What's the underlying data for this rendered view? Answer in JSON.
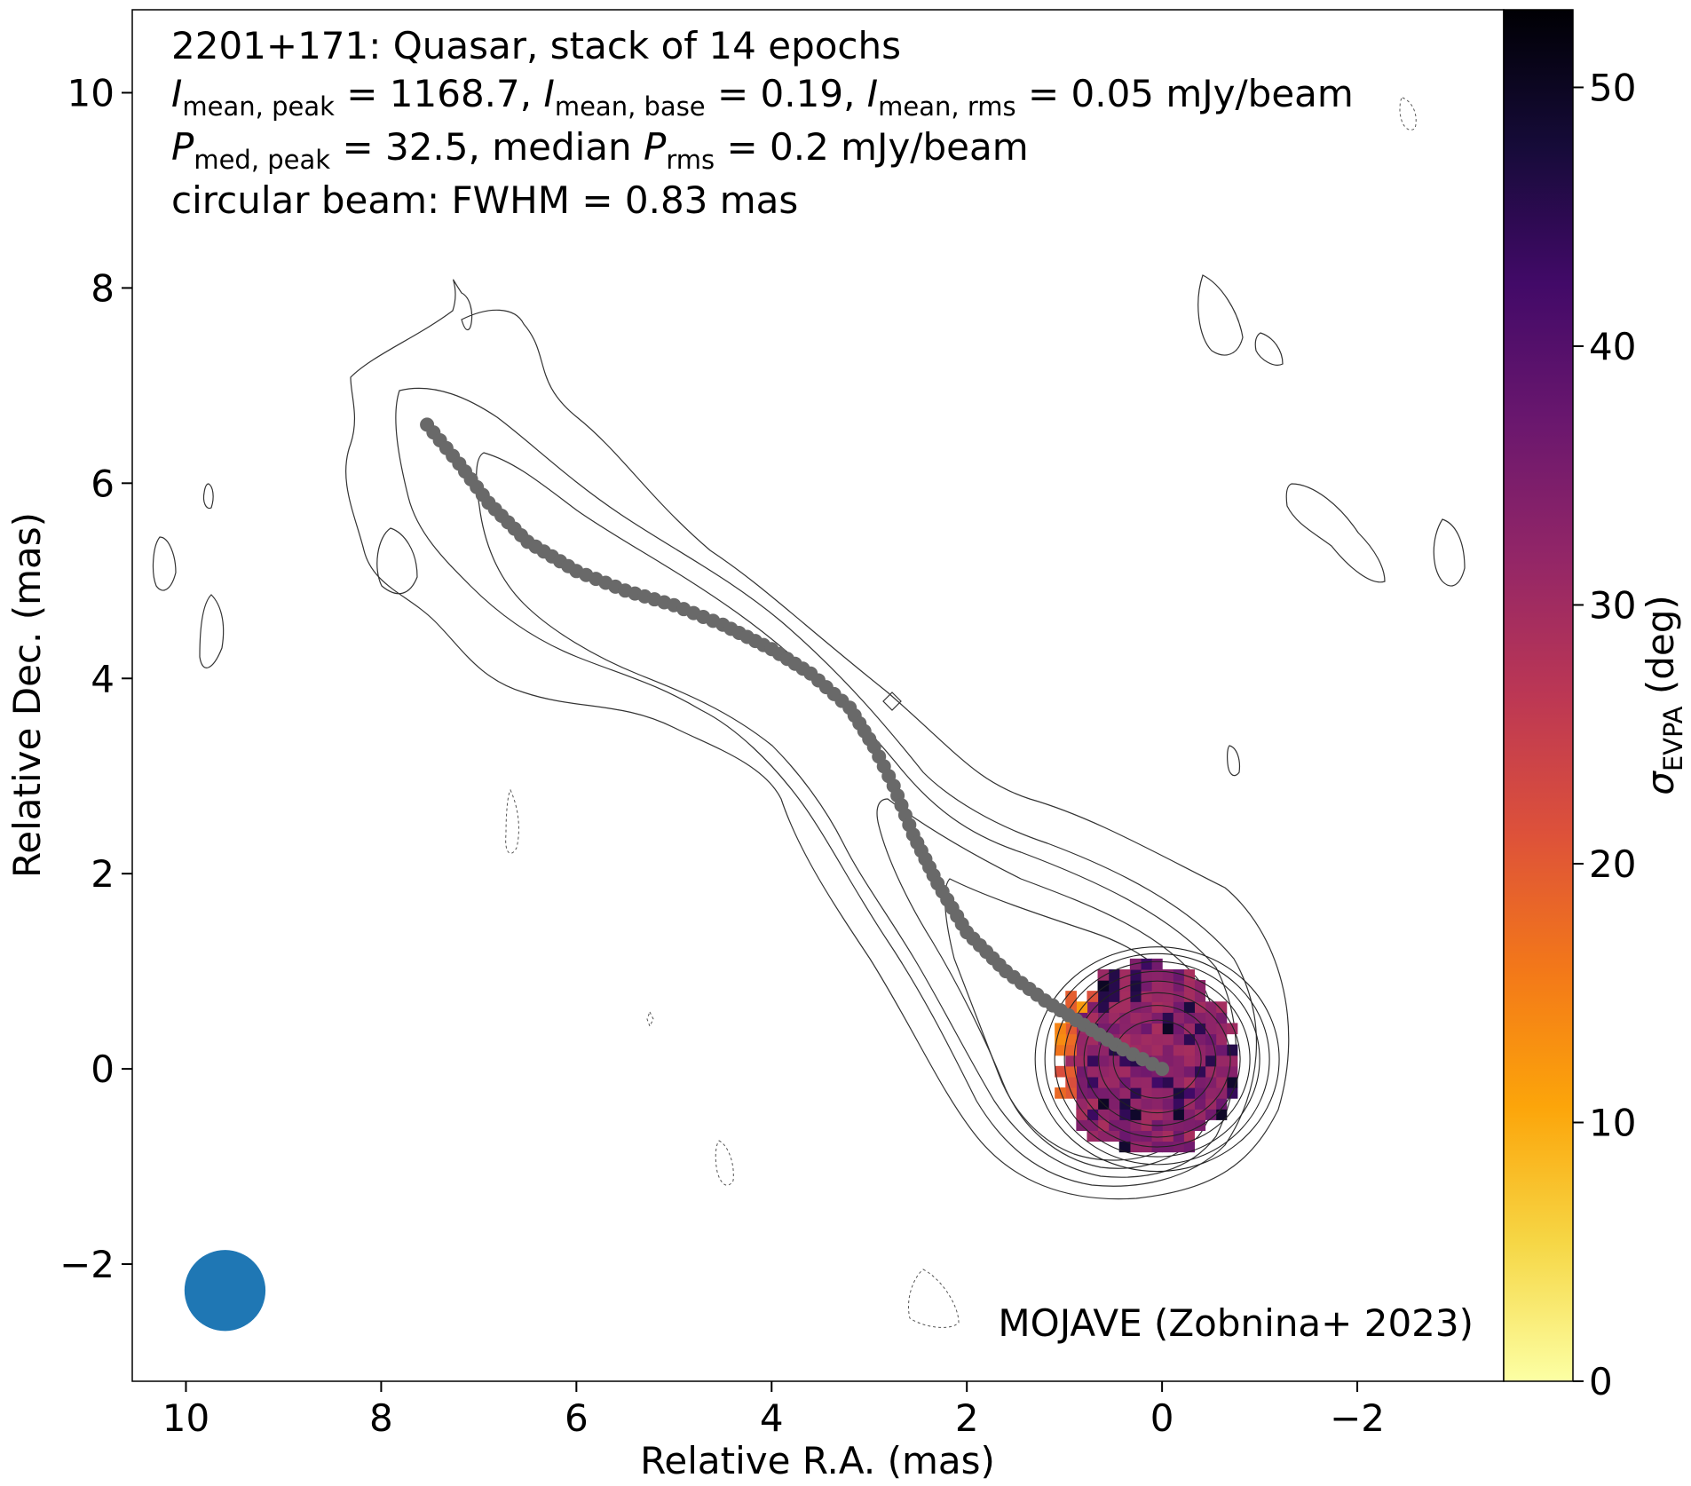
{
  "chart_data": {
    "type": "heatmap",
    "annotations": {
      "line1": "2201+171: Quasar, stack of 14 epochs",
      "line2": {
        "I1": "I",
        "s1": "mean, peak",
        "v1": " = 1168.7, ",
        "I2": "I",
        "s2": "mean, base",
        "v2": " = 0.19, ",
        "I3": "I",
        "s3": "mean, rms",
        "v3": " = 0.05 mJy/beam"
      },
      "line3": {
        "P1": "P",
        "s1": "med, peak",
        "v1": " = 32.5, median ",
        "P2": "P",
        "s2": "rms",
        "v2": " = 0.2 mJy/beam"
      },
      "line4": "circular beam: FWHM = 0.83 mas",
      "credit": "MOJAVE (Zobnina+ 2023)"
    },
    "xlabel": "Relative R.A. (mas)",
    "ylabel": "Relative Dec. (mas)",
    "xlim": [
      10.55,
      -3.5
    ],
    "ylim": [
      -3.2,
      10.85
    ],
    "xticks": [
      {
        "v": 10,
        "label": "10"
      },
      {
        "v": 8,
        "label": "8"
      },
      {
        "v": 6,
        "label": "6"
      },
      {
        "v": 4,
        "label": "4"
      },
      {
        "v": 2,
        "label": "2"
      },
      {
        "v": 0,
        "label": "0"
      },
      {
        "v": -2,
        "label": "−2"
      }
    ],
    "yticks": [
      {
        "v": -2,
        "label": "−2"
      },
      {
        "v": 0,
        "label": "0"
      },
      {
        "v": 2,
        "label": "2"
      },
      {
        "v": 4,
        "label": "4"
      },
      {
        "v": 6,
        "label": "6"
      },
      {
        "v": 8,
        "label": "8"
      },
      {
        "v": 10,
        "label": "10"
      }
    ],
    "colorbar": {
      "label_symbol": "σ",
      "label_sub": "EVPA",
      "label_unit": " (deg)",
      "range": [
        0,
        53
      ],
      "ticks": [
        {
          "v": 0,
          "label": "0"
        },
        {
          "v": 10,
          "label": "10"
        },
        {
          "v": 20,
          "label": "20"
        },
        {
          "v": 30,
          "label": "30"
        },
        {
          "v": 40,
          "label": "40"
        },
        {
          "v": 50,
          "label": "50"
        }
      ],
      "colormap": [
        "#fcffa4",
        "#f6d746",
        "#fca50a",
        "#f37819",
        "#dd513a",
        "#bc3754",
        "#932667",
        "#6a176e",
        "#420a68",
        "#160b39",
        "#000004"
      ]
    },
    "ridge_line": {
      "color": "#696969",
      "points": [
        [
          7.53,
          6.6
        ],
        [
          7.2,
          6.2
        ],
        [
          6.9,
          5.8
        ],
        [
          6.5,
          5.4
        ],
        [
          6.0,
          5.1
        ],
        [
          5.5,
          4.9
        ],
        [
          5.0,
          4.75
        ],
        [
          4.5,
          4.55
        ],
        [
          4.0,
          4.3
        ],
        [
          3.6,
          4.05
        ],
        [
          3.2,
          3.7
        ],
        [
          2.95,
          3.3
        ],
        [
          2.75,
          2.9
        ],
        [
          2.55,
          2.4
        ],
        [
          2.3,
          1.9
        ],
        [
          2.0,
          1.4
        ],
        [
          1.6,
          1.0
        ],
        [
          1.2,
          0.7
        ],
        [
          0.8,
          0.45
        ],
        [
          0.4,
          0.2
        ],
        [
          0.0,
          0.0
        ]
      ]
    },
    "beam": {
      "x": 9.6,
      "y": -2.27,
      "fwhm": 0.83,
      "color": "#1f77b4"
    },
    "contour_levels_mas": [
      [
        0.45,
        0.4
      ],
      [
        0.6,
        0.55
      ],
      [
        0.75,
        0.68
      ],
      [
        0.85,
        0.8
      ],
      [
        0.95,
        0.9
      ],
      [
        1.05,
        1.0
      ],
      [
        1.15,
        1.08
      ],
      [
        1.25,
        1.15
      ]
    ],
    "evpa_blob": {
      "x": 0.2,
      "y": 0.15,
      "rx": 0.95,
      "ry": 1.0,
      "value_center": 33,
      "value_edge_west": 12
    }
  }
}
